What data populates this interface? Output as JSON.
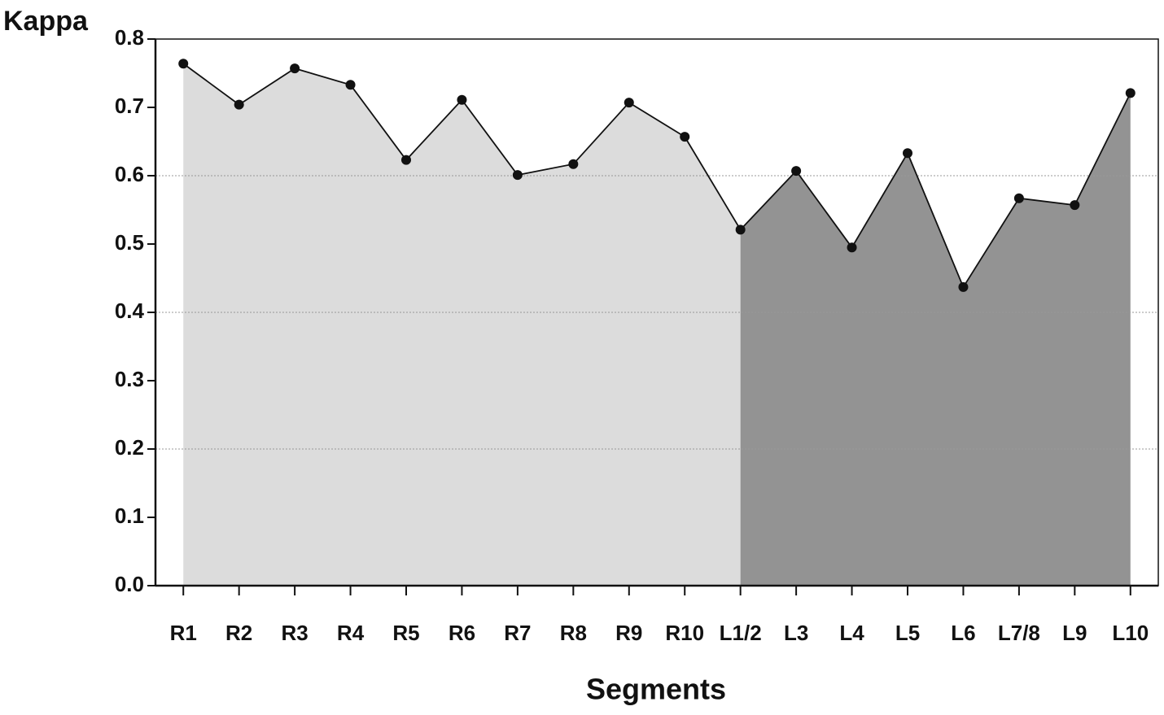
{
  "chart_data": {
    "type": "area-line",
    "y_label": "Kappa",
    "x_label": "Segments",
    "categories": [
      "R1",
      "R2",
      "R3",
      "R4",
      "R5",
      "R6",
      "R7",
      "R8",
      "R9",
      "R10",
      "L1/2",
      "L3",
      "L4",
      "L5",
      "L6",
      "L7/8",
      "L9",
      "L10"
    ],
    "series": [
      {
        "color": "#dcdcdc",
        "values": [
          0.764,
          0.704,
          0.757,
          0.733,
          0.623,
          0.711,
          0.601,
          0.617,
          0.707,
          0.657,
          null,
          null,
          null,
          null,
          null,
          null,
          null,
          null
        ]
      },
      {
        "color": "#939393",
        "values": [
          null,
          null,
          null,
          null,
          null,
          null,
          null,
          null,
          null,
          null,
          0.521,
          0.607,
          0.495,
          0.633,
          0.437,
          0.567,
          0.557,
          0.721
        ]
      }
    ],
    "line_color": "#111111",
    "ylim": [
      0,
      0.8
    ],
    "yticks": [
      {
        "value": 0,
        "label": "0.0"
      },
      0.1,
      0.2,
      0.3,
      0.4,
      0.5,
      0.6,
      0.7,
      0.8
    ],
    "grid": true
  }
}
